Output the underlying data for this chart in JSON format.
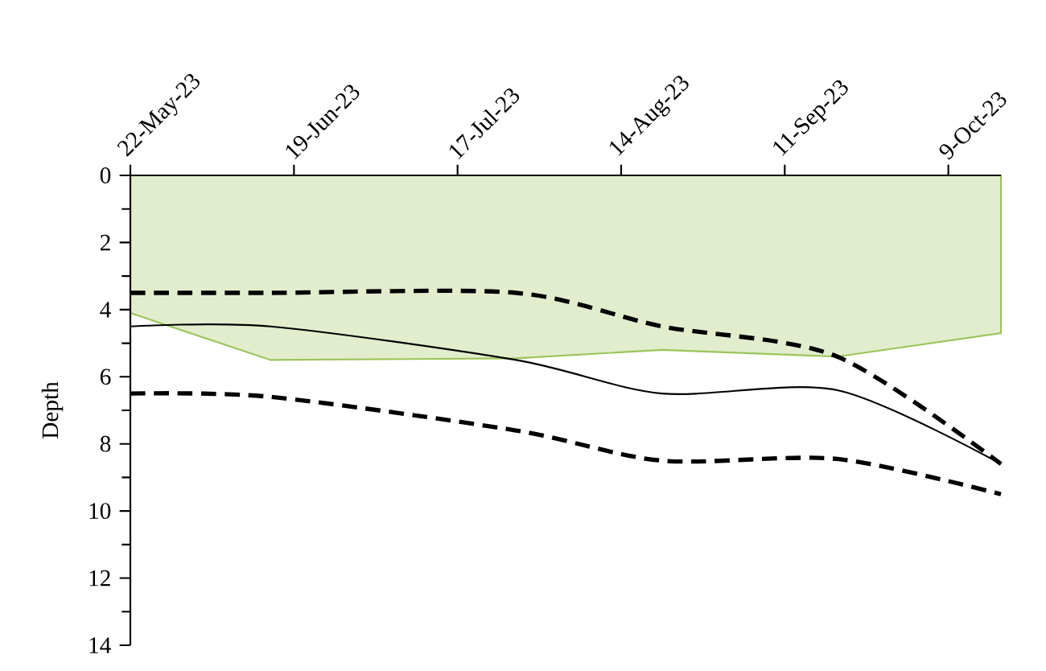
{
  "chart_data": {
    "type": "line",
    "ylabel": "Depth",
    "x": [
      "2023-05-22",
      "2023-06-15",
      "2023-07-27",
      "2023-08-21",
      "2023-09-20",
      "2023-10-18"
    ],
    "xlim": [
      "2023-05-22",
      "2023-10-18"
    ],
    "xticks": [
      {
        "value": "2023-05-22",
        "label": "22-May-23"
      },
      {
        "value": "2023-06-19",
        "label": "19-Jun-23"
      },
      {
        "value": "2023-07-17",
        "label": "17-Jul-23"
      },
      {
        "value": "2023-08-14",
        "label": "14-Aug-23"
      },
      {
        "value": "2023-09-11",
        "label": "11-Sep-23"
      },
      {
        "value": "2023-10-09",
        "label": "9-Oct-23"
      }
    ],
    "ylim": [
      14,
      0
    ],
    "yticks": [
      0,
      2,
      4,
      6,
      8,
      10,
      12,
      14
    ],
    "series": [
      {
        "type": "area",
        "color": "#9bc45a",
        "values": [
          4.1,
          5.5,
          5.45,
          5.2,
          5.4,
          4.7
        ]
      },
      {
        "color": "#000000",
        "line_style": "solid",
        "values": [
          4.5,
          4.5,
          5.5,
          6.5,
          6.4,
          8.6
        ]
      },
      {
        "color": "#000000",
        "line_style": "dashed",
        "values": [
          3.5,
          3.5,
          3.5,
          4.5,
          5.4,
          8.6
        ]
      },
      {
        "color": "#000000",
        "line_style": "dashed",
        "values": [
          6.5,
          6.6,
          7.6,
          8.5,
          8.45,
          9.5
        ]
      }
    ]
  }
}
